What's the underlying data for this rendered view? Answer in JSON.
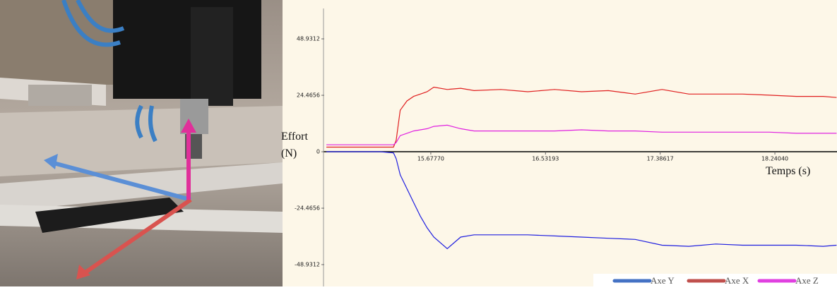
{
  "chart_data": {
    "type": "line",
    "y_label": "Effort (N)",
    "x_label": "Temps (s)",
    "xlim": [
      14.889,
      18.703
    ],
    "ylim": [
      -58.4,
      62.1
    ],
    "xticks": [
      {
        "value": 15.6777,
        "label": "15.67770"
      },
      {
        "value": 16.53193,
        "label": "16.53193"
      },
      {
        "value": 17.38617,
        "label": "17.38617"
      },
      {
        "value": 18.2404,
        "label": "18.24040"
      }
    ],
    "yticks": [
      48.9312,
      24.4656,
      0,
      -24.4656,
      -48.9312
    ],
    "legend": "lower right",
    "x": [
      14.9,
      15.0,
      15.1,
      15.2,
      15.3,
      15.4,
      15.42,
      15.45,
      15.5,
      15.55,
      15.6,
      15.65,
      15.7,
      15.8,
      15.9,
      16.0,
      16.2,
      16.4,
      16.6,
      16.8,
      17.0,
      17.2,
      17.4,
      17.6,
      17.8,
      18.0,
      18.2,
      18.4,
      18.6,
      18.7
    ],
    "series": [
      {
        "name": "Axe Y",
        "color": "#1f1fe0",
        "legend_color": "#4472c4",
        "values": [
          0,
          0,
          0,
          0,
          0,
          -0.5,
          -3,
          -10,
          -16,
          -22,
          -28,
          -33,
          -37,
          -42,
          -37,
          -36,
          -36,
          -36,
          -36.5,
          -37,
          -37.5,
          -38,
          -40.5,
          -41,
          -40,
          -40.5,
          -40.5,
          -40.5,
          -41,
          -40.5
        ]
      },
      {
        "name": "Axe X",
        "color": "#e01f1f",
        "legend_color": "#c0504d",
        "values": [
          2,
          2,
          2,
          2,
          2,
          2,
          5,
          18,
          22,
          24,
          25,
          26,
          28,
          27,
          27.5,
          26.5,
          27,
          26,
          27,
          26,
          26.5,
          25,
          27,
          25,
          25,
          25,
          24.5,
          24,
          24,
          23.5
        ]
      },
      {
        "name": "Axe Z",
        "color": "#e020e0",
        "legend_color": "#e040e0",
        "values": [
          3,
          3,
          3,
          3,
          3,
          3,
          4,
          7,
          8,
          9,
          9.5,
          10,
          11,
          11.5,
          10,
          9,
          9,
          9,
          9,
          9.5,
          9,
          9,
          8.5,
          8.5,
          8.5,
          8.5,
          8.5,
          8,
          8,
          8
        ]
      }
    ]
  }
}
